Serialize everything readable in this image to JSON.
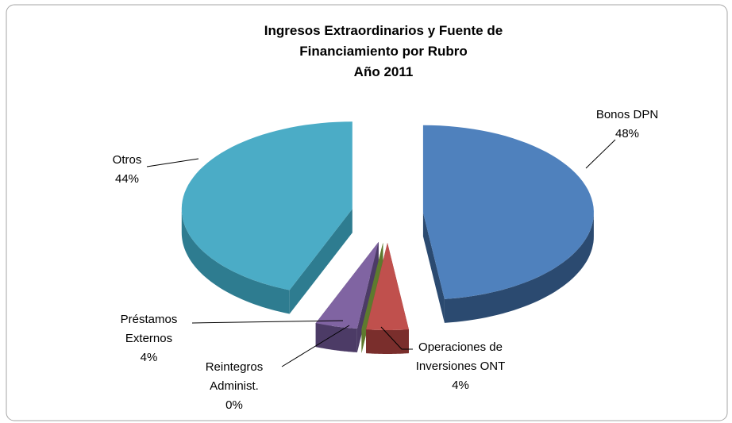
{
  "chart_data": {
    "type": "pie3d",
    "title": [
      "Ingresos Extraordinarios  y Fuente de",
      "Financiamiento  por Rubro",
      "Año 2011"
    ],
    "categories": [
      "Bonos DPN",
      "Operaciones de Inversiones ONT",
      "Reintegros Administ.",
      "Préstamos Externos",
      "Otros"
    ],
    "values": [
      48,
      4,
      0,
      4,
      44
    ],
    "value_labels": [
      "48%",
      "4%",
      "0%",
      "4%",
      "44%"
    ],
    "colors": [
      "#4f81bd",
      "#c0504d",
      "#9bbb59",
      "#8064a2",
      "#4bacc6"
    ],
    "side_colors": [
      "#2b4a70",
      "#7a2e2c",
      "#5e7a2e",
      "#4c3b66",
      "#2e7c90"
    ]
  }
}
